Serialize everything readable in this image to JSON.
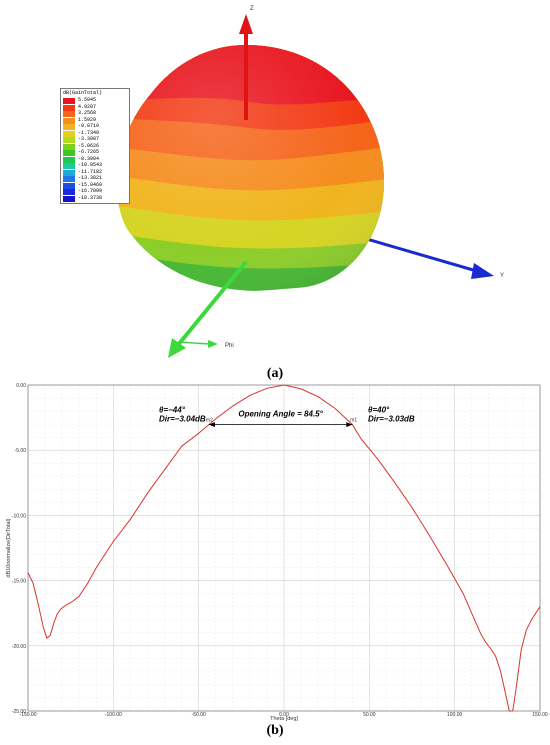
{
  "figure_a": {
    "caption": "(a)",
    "legend_title": "dB(GainTotal)",
    "legend_values": [
      "5.5945",
      "4.9207",
      "3.2568",
      "1.5929",
      "-0.0710",
      "-1.7349",
      "-3.3987",
      "-5.0626",
      "-6.7265",
      "-8.3904",
      "-10.0543",
      "-11.7182",
      "-13.3821",
      "-15.0460",
      "-16.7099",
      "-18.3738"
    ],
    "legend_colors": [
      "#e8141e",
      "#f23a14",
      "#f5641a",
      "#f58c1e",
      "#f5b41e",
      "#e6d21e",
      "#b4dc1e",
      "#78d21e",
      "#3cc81e",
      "#1ec850",
      "#1ec8a0",
      "#1eaadc",
      "#1e78e6",
      "#1e50e6",
      "#1e28dc",
      "#1414c8"
    ],
    "axis_labels": {
      "z": "Z",
      "x": "Phi",
      "y": "Y"
    },
    "axis_colors": {
      "z": "#e01414",
      "x": "#1a8c1a",
      "y": "#1a2ad0",
      "x_arrow": "#3cd83c"
    }
  },
  "figure_b": {
    "caption": "(b)",
    "annotations": {
      "left_theta": "θ=−44°",
      "left_dir": "Dir=−3.04dB",
      "right_theta": "θ=40°",
      "right_dir": "Dir=−3.03dB",
      "opening_angle": "Opening Angle = 84.5°",
      "marker_left": "m2",
      "marker_right": "m1"
    }
  },
  "chart_data": {
    "type": "line",
    "xlabel": "Theta [deg]",
    "ylabel": "dB10normalize(DirTotal)",
    "xlim": [
      -150,
      150
    ],
    "ylim": [
      -25,
      0
    ],
    "x_ticks": [
      "-150.00",
      "-100.00",
      "-50.00",
      "0.00",
      "50.00",
      "100.00",
      "150.00"
    ],
    "y_ticks": [
      "0.00",
      "-5.00",
      "-10.00",
      "-15.00",
      "-20.00",
      "-25.00"
    ],
    "grid": true,
    "series": [
      {
        "color": "#d9342b",
        "x": [
          -150,
          -147,
          -144,
          -141,
          -139,
          -137,
          -135,
          -133,
          -131,
          -128,
          -124,
          -120,
          -115,
          -110,
          -100,
          -90,
          -80,
          -70,
          -60,
          -50,
          -44,
          -40,
          -30,
          -20,
          -10,
          0,
          10,
          20,
          30,
          40,
          45,
          55,
          65,
          75,
          85,
          95,
          105,
          110,
          115,
          118,
          121,
          124,
          127,
          130,
          132,
          133,
          134,
          135,
          137,
          139,
          142,
          145,
          150
        ],
        "y": [
          -14.4,
          -15.2,
          -16.8,
          -18.6,
          -19.4,
          -19.2,
          -18.3,
          -17.6,
          -17.2,
          -16.9,
          -16.6,
          -16.2,
          -15.2,
          -14.0,
          -12.0,
          -10.3,
          -8.3,
          -6.5,
          -4.7,
          -3.7,
          -3.04,
          -2.6,
          -1.6,
          -0.8,
          -0.25,
          0,
          -0.3,
          -0.9,
          -1.8,
          -3.03,
          -4.1,
          -5.7,
          -7.5,
          -9.4,
          -11.5,
          -13.7,
          -16.0,
          -17.5,
          -19.0,
          -19.7,
          -20.2,
          -20.8,
          -22.0,
          -23.8,
          -25.0,
          -25.0,
          -25.0,
          -24.2,
          -22.3,
          -20.3,
          -18.8,
          -18.0,
          -17.0
        ]
      }
    ]
  }
}
